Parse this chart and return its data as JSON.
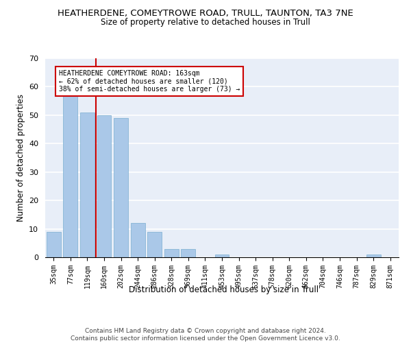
{
  "title": "HEATHERDENE, COMEYTROWE ROAD, TRULL, TAUNTON, TA3 7NE",
  "subtitle": "Size of property relative to detached houses in Trull",
  "xlabel": "Distribution of detached houses by size in Trull",
  "ylabel": "Number of detached properties",
  "categories": [
    "35sqm",
    "77sqm",
    "119sqm",
    "160sqm",
    "202sqm",
    "244sqm",
    "286sqm",
    "328sqm",
    "369sqm",
    "411sqm",
    "453sqm",
    "495sqm",
    "537sqm",
    "578sqm",
    "620sqm",
    "662sqm",
    "704sqm",
    "746sqm",
    "787sqm",
    "829sqm",
    "871sqm"
  ],
  "values": [
    9,
    57,
    51,
    50,
    49,
    12,
    9,
    3,
    3,
    0,
    1,
    0,
    0,
    0,
    0,
    0,
    0,
    0,
    0,
    1,
    0
  ],
  "bar_color": "#aac8e8",
  "bar_edge_color": "#7aaed0",
  "highlight_line_color": "#cc0000",
  "annotation_text": "HEATHERDENE COMEYTROWE ROAD: 163sqm\n← 62% of detached houses are smaller (120)\n38% of semi-detached houses are larger (73) →",
  "annotation_box_facecolor": "#ffffff",
  "annotation_border_color": "#cc0000",
  "ylim": [
    0,
    70
  ],
  "yticks": [
    0,
    10,
    20,
    30,
    40,
    50,
    60,
    70
  ],
  "bg_color": "#e8eef8",
  "grid_color": "#ffffff",
  "footer": "Contains HM Land Registry data © Crown copyright and database right 2024.\nContains public sector information licensed under the Open Government Licence v3.0.",
  "title_fontsize": 9.5,
  "subtitle_fontsize": 8.5,
  "xlabel_fontsize": 8.5,
  "ylabel_fontsize": 8.5,
  "tick_fontsize": 7,
  "annotation_fontsize": 7,
  "footer_fontsize": 6.5
}
